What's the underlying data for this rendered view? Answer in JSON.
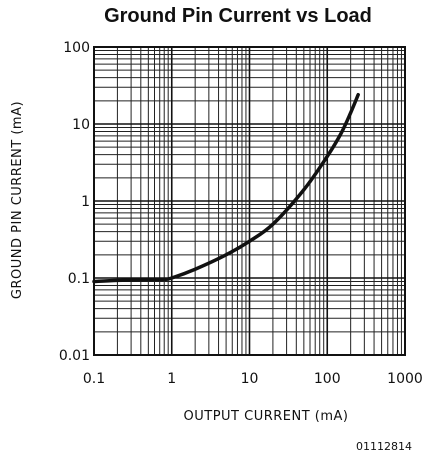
{
  "chart_data": {
    "type": "line",
    "title": "Ground Pin Current vs Load",
    "xlabel": "OUTPUT CURRENT (mA)",
    "ylabel": "GROUND PIN CURRENT (mA)",
    "x_scale": "log",
    "y_scale": "log",
    "xlim": [
      0.1,
      1000
    ],
    "ylim": [
      0.01,
      100
    ],
    "x_ticks": [
      0.1,
      1,
      10,
      100,
      1000
    ],
    "x_tick_labels": [
      "0.1",
      "1",
      "10",
      "100",
      "1000"
    ],
    "y_ticks": [
      0.01,
      0.1,
      1,
      10,
      100
    ],
    "y_tick_labels": [
      "0.01",
      "0.1",
      "1",
      "10",
      "100"
    ],
    "grid": true,
    "series": [
      {
        "x": [
          0.1,
          0.2,
          0.5,
          0.8,
          1,
          2,
          5,
          10,
          20,
          50,
          100,
          150,
          200,
          250
        ],
        "y": [
          0.09,
          0.093,
          0.095,
          0.096,
          0.1,
          0.13,
          0.2,
          0.3,
          0.5,
          1.4,
          3.8,
          7.5,
          14,
          24
        ]
      }
    ],
    "figure_id": "01112814"
  }
}
